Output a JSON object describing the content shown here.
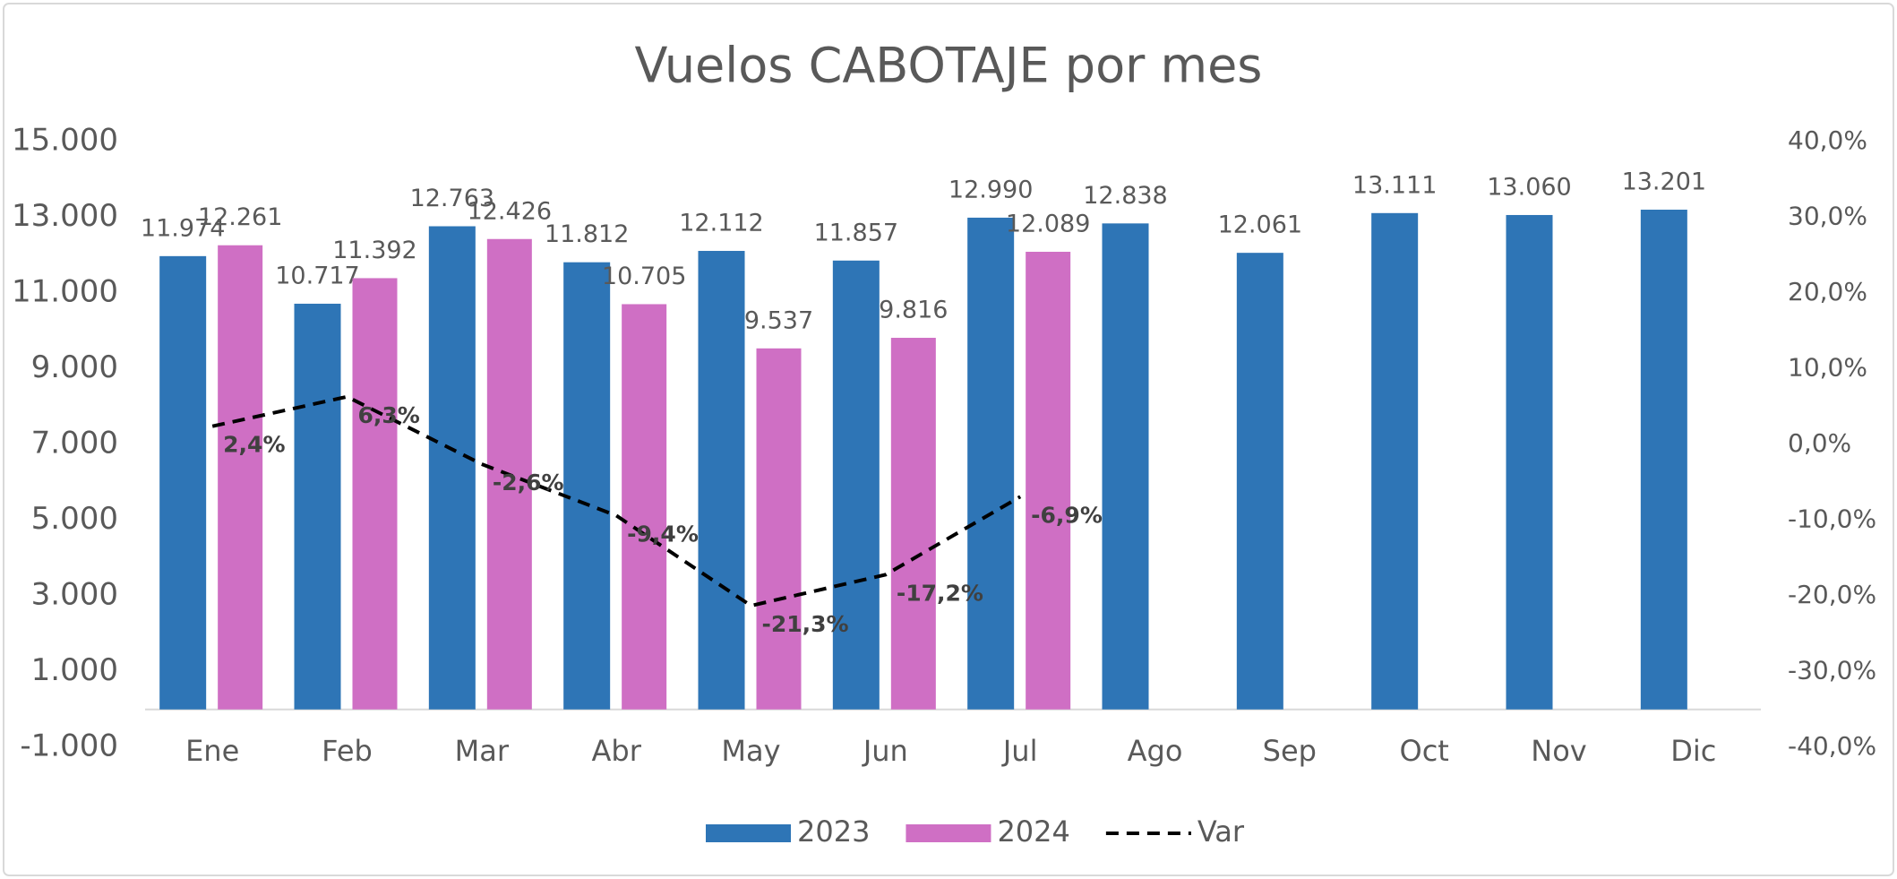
{
  "chart_data": {
    "type": "bar",
    "title": "Vuelos CABOTAJE  por mes",
    "categories": [
      "Ene",
      "Feb",
      "Mar",
      "Abr",
      "May",
      "Jun",
      "Jul",
      "Ago",
      "Sep",
      "Oct",
      "Nov",
      "Dic"
    ],
    "series": [
      {
        "name": "2023",
        "color": "#2e75b6",
        "values": [
          11974,
          10717,
          12763,
          11812,
          12112,
          11857,
          12990,
          12838,
          12061,
          13111,
          13060,
          13201
        ],
        "value_labels": [
          "11.974",
          "10.717",
          "12.763",
          "11.812",
          "12.112",
          "11.857",
          "12.990",
          "12.838",
          "12.061",
          "13.111",
          "13.060",
          "13.201"
        ]
      },
      {
        "name": "2024",
        "color": "#cf6fc4",
        "values": [
          12261,
          11392,
          12426,
          10705,
          9537,
          9816,
          12089,
          null,
          null,
          null,
          null,
          null
        ],
        "value_labels": [
          "12.261",
          "11.392",
          "12.426",
          "10.705",
          "9.537",
          "9.816",
          "12.089",
          null,
          null,
          null,
          null,
          null
        ]
      },
      {
        "name": "Var",
        "type": "line",
        "axis": "y2",
        "color": "#000000",
        "dashed": true,
        "values": [
          2.4,
          6.3,
          -2.6,
          -9.4,
          -21.3,
          -17.2,
          -6.9,
          null,
          null,
          null,
          null,
          null
        ],
        "value_labels": [
          "2,4%",
          "6,3%",
          "-2,6%",
          "-9,4%",
          "-21,3%",
          "-17,2%",
          "-6,9%",
          null,
          null,
          null,
          null,
          null
        ]
      }
    ],
    "ylim": [
      -1000,
      15000
    ],
    "yticks": [
      {
        "value": -1000,
        "label": "-1.000"
      },
      {
        "value": 1000,
        "label": "1.000"
      },
      {
        "value": 3000,
        "label": "3.000"
      },
      {
        "value": 5000,
        "label": "5.000"
      },
      {
        "value": 7000,
        "label": "7.000"
      },
      {
        "value": 9000,
        "label": "9.000"
      },
      {
        "value": 11000,
        "label": "11.000"
      },
      {
        "value": 13000,
        "label": "13.000"
      },
      {
        "value": 15000,
        "label": "15.000"
      }
    ],
    "y2lim": [
      -40,
      40
    ],
    "y2ticks": [
      {
        "value": -40,
        "label": "-40,0%"
      },
      {
        "value": -30,
        "label": "-30,0%"
      },
      {
        "value": -20,
        "label": "-20,0%"
      },
      {
        "value": -10,
        "label": "-10,0%"
      },
      {
        "value": 0,
        "label": "0,0%"
      },
      {
        "value": 10,
        "label": "10,0%"
      },
      {
        "value": 20,
        "label": "20,0%"
      },
      {
        "value": 30,
        "label": "30,0%"
      },
      {
        "value": 40,
        "label": "40,0%"
      }
    ],
    "grid": false,
    "legend": "bottom"
  }
}
